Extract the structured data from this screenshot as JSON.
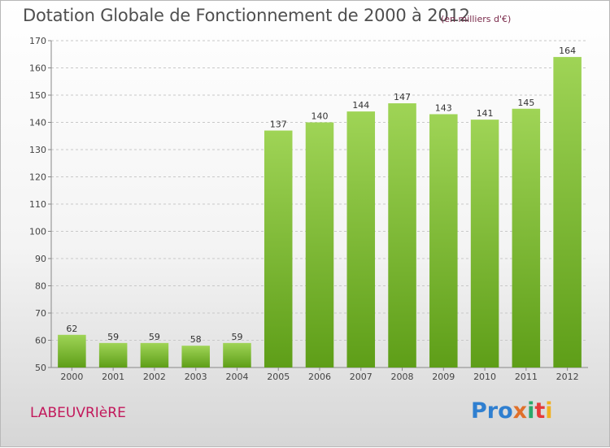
{
  "title": "Dotation Globale de Fonctionnement de 2000 à 2012",
  "subtitle": "(en milliers d'€)",
  "commune": "LABEUVRIèRE",
  "logo": [
    "Pro",
    "x",
    "i",
    "t",
    "i"
  ],
  "colors": {
    "bar_light": "#9fd456",
    "bar_dark": "#5e9e18",
    "grid": "#c8c8c8",
    "title": "#4f4f4f",
    "commune": "#c2185b"
  },
  "chart_data": {
    "type": "bar",
    "title": "Dotation Globale de Fonctionnement de 2000 à 2012",
    "subtitle": "(en milliers d'€)",
    "categories": [
      "2000",
      "2001",
      "2002",
      "2003",
      "2004",
      "2005",
      "2006",
      "2007",
      "2008",
      "2009",
      "2010",
      "2011",
      "2012"
    ],
    "values": [
      62,
      59,
      59,
      58,
      59,
      137,
      140,
      144,
      147,
      143,
      141,
      145,
      164
    ],
    "ylim": [
      50,
      170
    ],
    "yticks": [
      50,
      60,
      70,
      80,
      90,
      100,
      110,
      120,
      130,
      140,
      150,
      160,
      170
    ],
    "grid": true,
    "xlabel": "",
    "ylabel": ""
  }
}
